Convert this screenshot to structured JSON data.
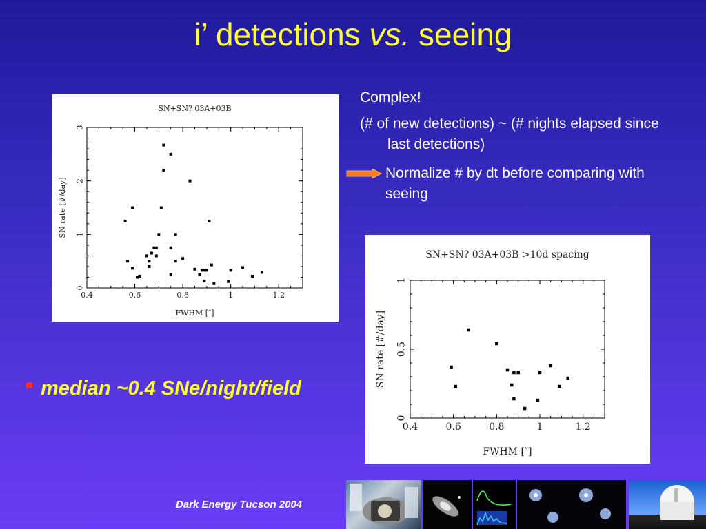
{
  "title": {
    "part1": "i’ detections ",
    "part2": "vs.",
    "part3": " seeing"
  },
  "notes": {
    "line1": "Complex!",
    "line2": "(# of new detections)  ~ (# nights elapsed since last detections)",
    "line3": "Normalize # by dt before comparing with seeing"
  },
  "bullet": "median ~0.4 SNe/night/field",
  "footer": "Dark Energy Tucson 2004",
  "colors": {
    "title": "#ffff33",
    "bullet_marker": "#ff2a2a",
    "arrow": "#ff7a1a"
  },
  "chart_data": [
    {
      "type": "scatter",
      "title": "SN+SN? 03A+03B",
      "xlabel": "FWHM [″]",
      "ylabel": "SN rate [#/day]",
      "xlim": [
        0.4,
        1.3
      ],
      "ylim": [
        0,
        3
      ],
      "xticks": [
        0.4,
        0.6,
        0.8,
        1,
        1.2
      ],
      "xtick_labels": [
        "0.4",
        "0.6",
        "0.8",
        "1",
        "1.2"
      ],
      "yticks": [
        0,
        1,
        2,
        3
      ],
      "ytick_labels": [
        "0",
        "1",
        "2",
        "3"
      ],
      "points": [
        [
          0.56,
          1.25
        ],
        [
          0.57,
          0.5
        ],
        [
          0.59,
          1.5
        ],
        [
          0.59,
          0.37
        ],
        [
          0.61,
          0.2
        ],
        [
          0.62,
          0.22
        ],
        [
          0.65,
          0.6
        ],
        [
          0.66,
          0.5
        ],
        [
          0.66,
          0.4
        ],
        [
          0.67,
          0.65
        ],
        [
          0.68,
          0.75
        ],
        [
          0.69,
          0.75
        ],
        [
          0.69,
          0.6
        ],
        [
          0.7,
          1.0
        ],
        [
          0.71,
          1.5
        ],
        [
          0.72,
          2.67
        ],
        [
          0.72,
          2.2
        ],
        [
          0.75,
          2.5
        ],
        [
          0.75,
          0.75
        ],
        [
          0.75,
          0.25
        ],
        [
          0.77,
          1.0
        ],
        [
          0.77,
          0.5
        ],
        [
          0.8,
          0.55
        ],
        [
          0.83,
          2.0
        ],
        [
          0.85,
          0.35
        ],
        [
          0.87,
          0.25
        ],
        [
          0.88,
          0.33
        ],
        [
          0.89,
          0.33
        ],
        [
          0.9,
          0.33
        ],
        [
          0.91,
          1.25
        ],
        [
          0.92,
          0.43
        ],
        [
          0.93,
          0.08
        ],
        [
          0.89,
          0.13
        ],
        [
          0.99,
          0.12
        ],
        [
          1.0,
          0.33
        ],
        [
          1.05,
          0.38
        ],
        [
          1.09,
          0.22
        ],
        [
          1.13,
          0.29
        ]
      ]
    },
    {
      "type": "scatter",
      "title": "SN+SN? 03A+03B >10d spacing",
      "xlabel": "FWHM [″]",
      "ylabel": "SN rate [#/day]",
      "xlim": [
        0.4,
        1.3
      ],
      "ylim": [
        0,
        1
      ],
      "xticks": [
        0.4,
        0.6,
        0.8,
        1,
        1.2
      ],
      "xtick_labels": [
        "0.4",
        "0.6",
        "0.8",
        "1",
        "1.2"
      ],
      "yticks": [
        0,
        0.5,
        1
      ],
      "ytick_labels": [
        "0",
        "0.5",
        "1"
      ],
      "points": [
        [
          0.59,
          0.37
        ],
        [
          0.61,
          0.23
        ],
        [
          0.67,
          0.64
        ],
        [
          0.8,
          0.54
        ],
        [
          0.85,
          0.35
        ],
        [
          0.87,
          0.24
        ],
        [
          0.88,
          0.33
        ],
        [
          0.88,
          0.14
        ],
        [
          0.9,
          0.33
        ],
        [
          0.93,
          0.07
        ],
        [
          0.99,
          0.13
        ],
        [
          1.0,
          0.33
        ],
        [
          1.05,
          0.38
        ],
        [
          1.09,
          0.23
        ],
        [
          1.13,
          0.29
        ]
      ]
    }
  ]
}
